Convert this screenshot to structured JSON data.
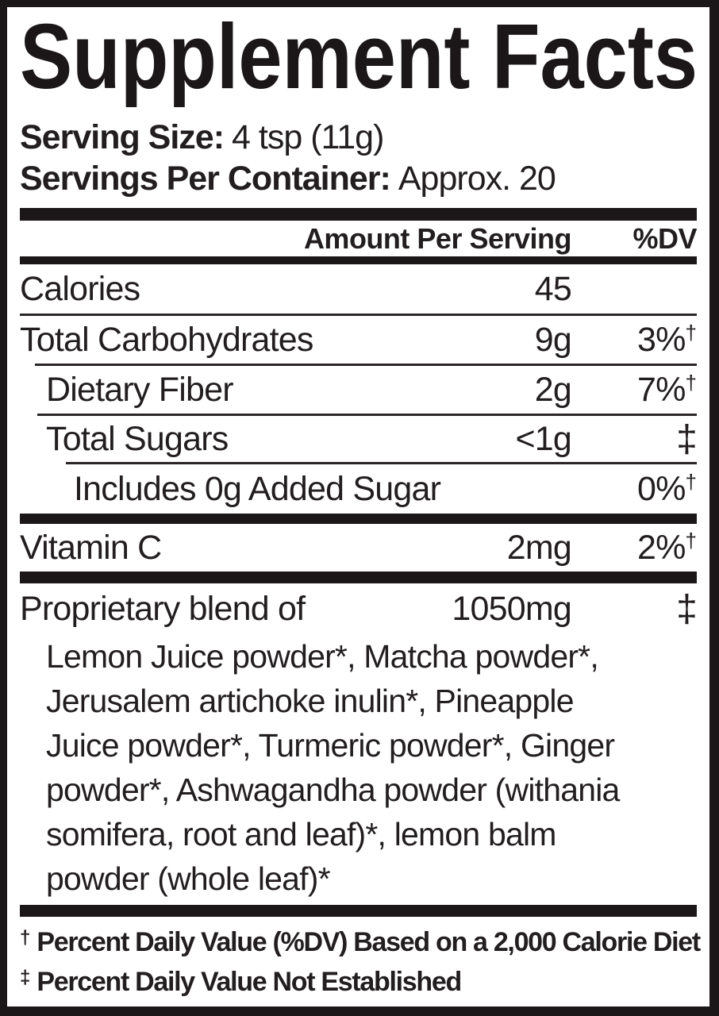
{
  "label": {
    "title": "Supplement Facts",
    "serving_size": {
      "label": "Serving Size:",
      "value": "4 tsp (11g)"
    },
    "servings_per_container": {
      "label": "Servings Per Container:",
      "value": "Approx. 20"
    },
    "columns": {
      "amount": "Amount Per Serving",
      "dv": "%DV"
    },
    "rows": [
      {
        "name": "Calories",
        "amount": "45",
        "dv": "",
        "dv_mark": ""
      },
      {
        "name": "Total Carbohydrates",
        "amount": "9g",
        "dv": "3%",
        "dv_mark": "†"
      },
      {
        "name": "Dietary Fiber",
        "amount": "2g",
        "dv": "7%",
        "dv_mark": "†"
      },
      {
        "name": "Total Sugars",
        "amount": "<1g",
        "dv_symbol": "‡"
      },
      {
        "name": "Includes 0g Added Sugar",
        "amount": "",
        "dv": "0%",
        "dv_mark": "†"
      },
      {
        "name": "Vitamin C",
        "amount": "2mg",
        "dv": "2%",
        "dv_mark": "†"
      },
      {
        "name": "Proprietary blend of",
        "amount": "1050mg",
        "dv_symbol": "‡"
      }
    ],
    "blend_lines": [
      "Lemon Juice powder*, Matcha powder*,",
      "Jerusalem artichoke inulin*, Pineapple",
      "Juice powder*, Turmeric powder*, Ginger",
      "powder*, Ashwagandha powder (withania",
      "somifera, root and leaf)*, lemon balm",
      "powder (whole leaf)*"
    ],
    "footnotes": [
      {
        "mark": "†",
        "text": "Percent Daily Value (%DV) Based on a 2,000 Calorie Diet"
      },
      {
        "mark": "‡",
        "text": "Percent Daily Value Not Established"
      }
    ],
    "colors": {
      "text": "#221e1f",
      "background": "#ffffff",
      "border": "#1b1718"
    }
  }
}
